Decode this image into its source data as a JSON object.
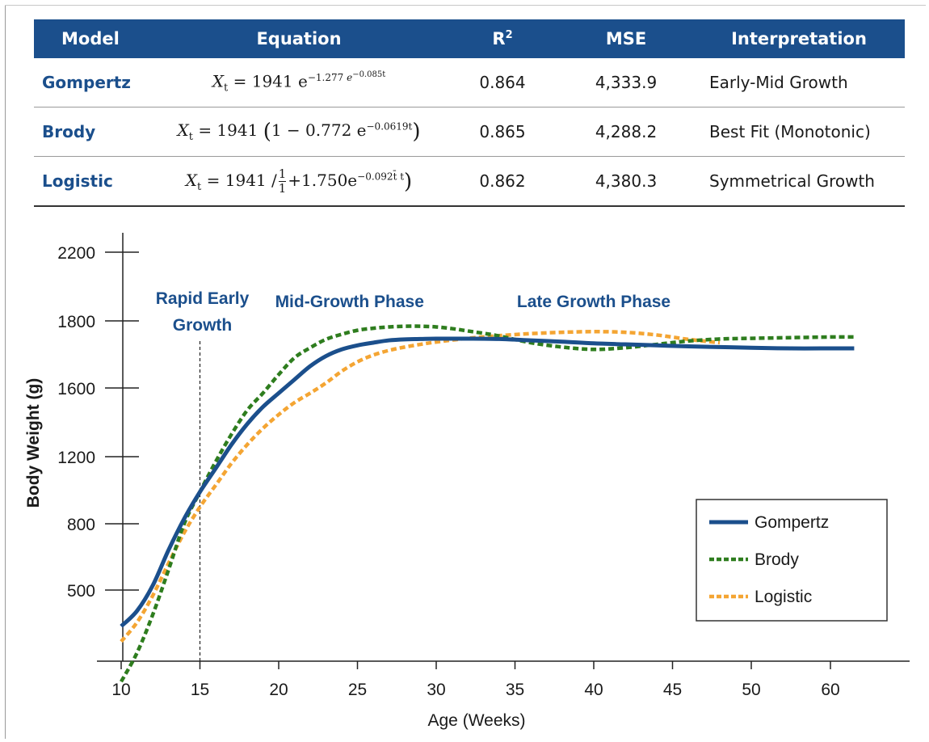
{
  "table": {
    "headers": [
      "Model",
      "Equation",
      "R",
      "2",
      "MSE",
      "Interpretation"
    ],
    "rows": [
      {
        "model": "Gompertz",
        "lhs": "X",
        "lhs_sub": "t",
        "eq_main": "= 1941 e",
        "exp1": "−1.277",
        "inner_e": "e",
        "exp2": "−0.085t",
        "r2": "0.864",
        "mse": "4,333.9",
        "interpretation": "Early-Mid Growth"
      },
      {
        "model": "Brody",
        "lhs": "X",
        "lhs_sub": "t",
        "eq_main": "= 1941",
        "open": "(",
        "inner": "1 − 0.772 e",
        "exp1": "−0.0619t",
        "close": ")",
        "r2": "0.865",
        "mse": "4,288.2",
        "interpretation": "Best Fit (Monotonic)"
      },
      {
        "model": "Logistic",
        "lhs": "X",
        "lhs_sub": "t",
        "eq_main": "= 1941 /",
        "frac_num": "1",
        "frac_den": "1",
        "inner": "+1.750e",
        "exp1": "−0.092t̄ t",
        "close": ")",
        "r2": "0.862",
        "mse": "4,380.3",
        "interpretation": "Symmetrical Growth"
      }
    ]
  },
  "chart_data": {
    "type": "line",
    "xlabel": "Age (Weeks)",
    "ylabel": "Body Weight (g)",
    "xticks": [
      10,
      15,
      20,
      25,
      30,
      35,
      40,
      45,
      50,
      60
    ],
    "yticks": [
      500,
      800,
      1200,
      1600,
      1800,
      2200
    ],
    "xlim": [
      10,
      63.5
    ],
    "grid": false,
    "legend_position": "bottom-right",
    "annotations": [
      {
        "lines": [
          "Rapid Early",
          "Growth"
        ],
        "x": 15
      },
      {
        "lines": [
          "Mid-Growth Phase"
        ],
        "x": 24.5
      },
      {
        "lines": [
          "Late Growth Phase"
        ],
        "x": 40
      }
    ],
    "marker_line_x": 15,
    "series": [
      {
        "name": "Gompertz",
        "color": "#1b4f8c",
        "style": "solid",
        "x": [
          10,
          11,
          12,
          13,
          14,
          15,
          16,
          17,
          18,
          19,
          20,
          21,
          22,
          23,
          24,
          25,
          26,
          27,
          28,
          29,
          30,
          32,
          34,
          36,
          38,
          40,
          42,
          44,
          46,
          48,
          50,
          55,
          60,
          63
        ],
        "y": [
          310,
          390,
          520,
          680,
          830,
          990,
          1130,
          1270,
          1390,
          1490,
          1570,
          1625,
          1665,
          1695,
          1715,
          1727,
          1735,
          1742,
          1745,
          1746,
          1747,
          1747,
          1746,
          1742,
          1738,
          1733,
          1730,
          1727,
          1724,
          1722,
          1720,
          1718,
          1718,
          1718
        ]
      },
      {
        "name": "Brody",
        "color": "#2e7d1e",
        "style": "dotted",
        "x": [
          10,
          11,
          12,
          13,
          14,
          15,
          16,
          17,
          18,
          19,
          20,
          21,
          22,
          23,
          24,
          25,
          26,
          27,
          28,
          29,
          30,
          31,
          32,
          33,
          34,
          36,
          38,
          40,
          42,
          44,
          46,
          48,
          50,
          55,
          60,
          63
        ],
        "y": [
          20,
          170,
          370,
          590,
          800,
          990,
          1170,
          1330,
          1470,
          1570,
          1640,
          1690,
          1720,
          1745,
          1760,
          1772,
          1778,
          1782,
          1784,
          1784,
          1782,
          1777,
          1770,
          1763,
          1755,
          1735,
          1722,
          1715,
          1720,
          1730,
          1740,
          1746,
          1748,
          1750,
          1752,
          1752
        ]
      },
      {
        "name": "Logistic",
        "color": "#f4a533",
        "style": "dotted",
        "x": [
          10,
          11,
          12,
          13,
          14,
          15,
          16,
          17,
          18,
          19,
          20,
          21,
          22,
          23,
          24,
          25,
          26,
          27,
          28,
          29,
          30,
          32,
          34,
          36,
          38,
          40,
          42,
          44,
          46,
          48
        ],
        "y": [
          230,
          330,
          470,
          620,
          760,
          900,
          1030,
          1160,
          1270,
          1365,
          1445,
          1515,
          1570,
          1615,
          1650,
          1678,
          1698,
          1712,
          1722,
          1730,
          1737,
          1748,
          1756,
          1762,
          1766,
          1768,
          1766,
          1758,
          1745,
          1735
        ]
      }
    ]
  }
}
